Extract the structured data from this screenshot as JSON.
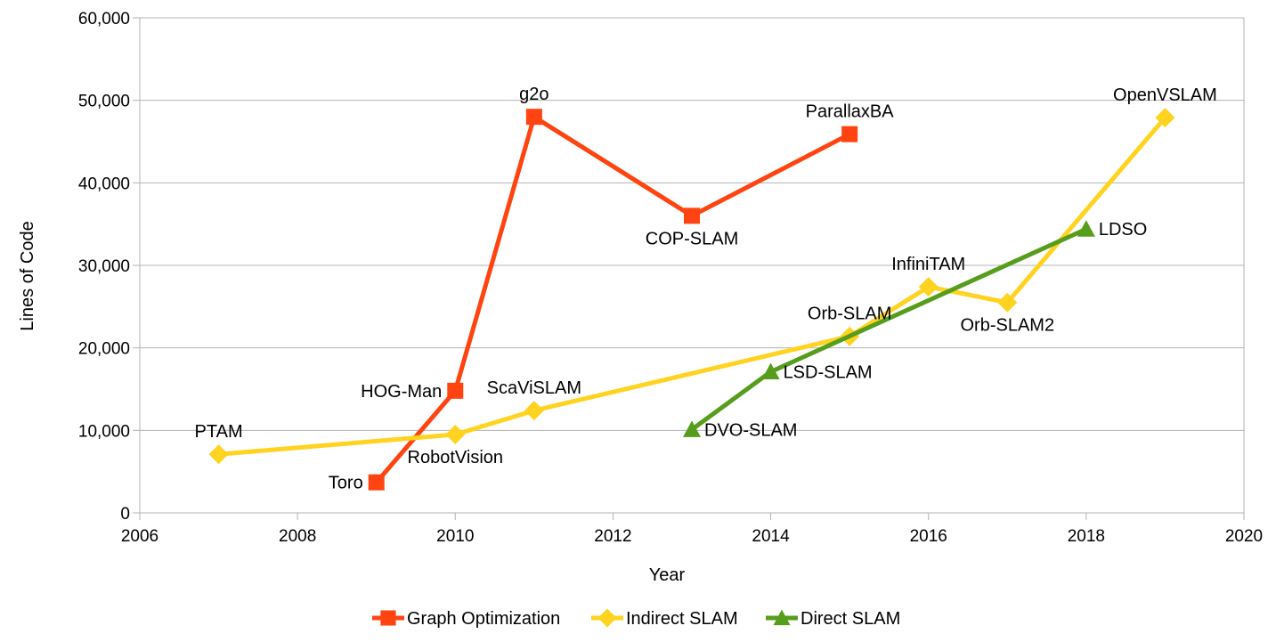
{
  "chart_data": {
    "type": "line",
    "title": "",
    "xlabel": "Year",
    "ylabel": "Lines of Code",
    "xlim": [
      2006,
      2020
    ],
    "ylim": [
      0,
      60000
    ],
    "x_ticks": [
      2006,
      2008,
      2010,
      2012,
      2014,
      2016,
      2018,
      2020
    ],
    "x_tick_labels": [
      "2006",
      "2008",
      "2010",
      "2012",
      "2014",
      "2016",
      "2018",
      "2020"
    ],
    "y_ticks": [
      0,
      10000,
      20000,
      30000,
      40000,
      50000,
      60000
    ],
    "y_tick_labels": [
      "0",
      "10,000",
      "20,000",
      "30,000",
      "40,000",
      "50,000",
      "60,000"
    ],
    "grid": "horizontal",
    "legend_position": "bottom",
    "series": [
      {
        "name": "Graph Optimization",
        "color": "#ff4411",
        "marker": "square",
        "points": [
          {
            "x": 2009,
            "y": 3700,
            "label": "Toro",
            "label_pos": "left"
          },
          {
            "x": 2010,
            "y": 14800,
            "label": "HOG-Man",
            "label_pos": "left"
          },
          {
            "x": 2011,
            "y": 48000,
            "label": "g2o",
            "label_pos": "above"
          },
          {
            "x": 2013,
            "y": 36000,
            "label": "COP-SLAM",
            "label_pos": "below"
          },
          {
            "x": 2015,
            "y": 45900,
            "label": "ParallaxBA",
            "label_pos": "above"
          }
        ]
      },
      {
        "name": "Indirect SLAM",
        "color": "#ffd320",
        "marker": "diamond",
        "points": [
          {
            "x": 2007,
            "y": 7100,
            "label": "PTAM",
            "label_pos": "above"
          },
          {
            "x": 2010,
            "y": 9500,
            "label": "RobotVision",
            "label_pos": "below"
          },
          {
            "x": 2011,
            "y": 12400,
            "label": "ScaViSLAM",
            "label_pos": "above"
          },
          {
            "x": 2015,
            "y": 21400,
            "label": "Orb-SLAM",
            "label_pos": "above"
          },
          {
            "x": 2016,
            "y": 27400,
            "label": "InfiniTAM",
            "label_pos": "above"
          },
          {
            "x": 2017,
            "y": 25500,
            "label": "Orb-SLAM2",
            "label_pos": "below"
          },
          {
            "x": 2019,
            "y": 47900,
            "label": "OpenVSLAM",
            "label_pos": "above"
          }
        ]
      },
      {
        "name": "Direct SLAM",
        "color": "#579d1c",
        "marker": "triangle",
        "points": [
          {
            "x": 2013,
            "y": 10100,
            "label": "DVO-SLAM",
            "label_pos": "right"
          },
          {
            "x": 2014,
            "y": 17100,
            "label": "LSD-SLAM",
            "label_pos": "right"
          },
          {
            "x": 2018,
            "y": 34400,
            "label": "LDSO",
            "label_pos": "right"
          }
        ]
      }
    ]
  }
}
